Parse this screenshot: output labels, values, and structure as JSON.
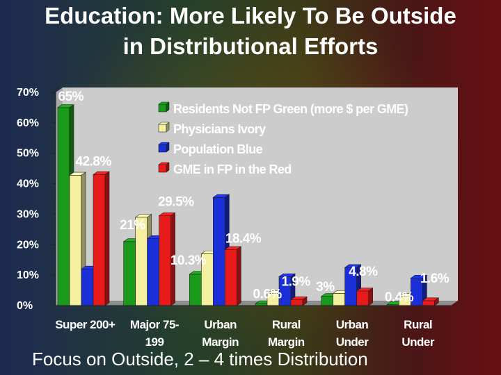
{
  "title": {
    "line1": "Education: More Likely To Be Outside",
    "line2": "in Distributional Efforts"
  },
  "footer": "Focus on Outside, 2 – 4 times Distribution",
  "chart_data": {
    "type": "bar",
    "categories": [
      [
        "Super 200+"
      ],
      [
        "Major 75-",
        "199"
      ],
      [
        "Urban",
        "Margin"
      ],
      [
        "Rural",
        "Margin"
      ],
      [
        "Urban",
        "Under"
      ],
      [
        "Rural",
        "Under"
      ]
    ],
    "series": [
      {
        "name": "Residents Not FP Green (more $ per GME)",
        "color": "#1a9a1a",
        "values": [
          65,
          21,
          10.3,
          0.6,
          3,
          0.4
        ]
      },
      {
        "name": "Physicians Ivory",
        "color": "#f5f0a0",
        "values": [
          42.8,
          29,
          17,
          4,
          4,
          3
        ]
      },
      {
        "name": "Population Blue",
        "color": "#1b2fd8",
        "values": [
          12,
          22,
          35.5,
          9.5,
          12.5,
          9
        ]
      },
      {
        "name": "GME in FP in the Red",
        "color": "#e81a1a",
        "values": [
          43,
          29.5,
          18.4,
          1.9,
          4.8,
          1.6
        ]
      }
    ],
    "data_labels": [
      {
        "text": "65%",
        "category": 0,
        "series": 0
      },
      {
        "text": "42.8%",
        "category": 0,
        "series": 1
      },
      {
        "text": "21%",
        "category": 1,
        "series": 0
      },
      {
        "text": "29.5%",
        "category": 1,
        "series": 3
      },
      {
        "text": "10.3%",
        "category": 2,
        "series": 0
      },
      {
        "text": "18.4%",
        "category": 2,
        "series": 3
      },
      {
        "text": "0.6%",
        "category": 3,
        "series": 0
      },
      {
        "text": "1.9%",
        "category": 3,
        "series": 3
      },
      {
        "text": "3%",
        "category": 4,
        "series": 0
      },
      {
        "text": "4.8%",
        "category": 4,
        "series": 3
      },
      {
        "text": "0.4%",
        "category": 5,
        "series": 0
      },
      {
        "text": "1.6%",
        "category": 5,
        "series": 3
      }
    ],
    "ylim": [
      0,
      70
    ],
    "yticks": [
      "0%",
      "10%",
      "20%",
      "30%",
      "40%",
      "50%",
      "60%",
      "70%"
    ],
    "grid": false,
    "legend_position": "top-right",
    "plot_background": "#cccccc"
  }
}
